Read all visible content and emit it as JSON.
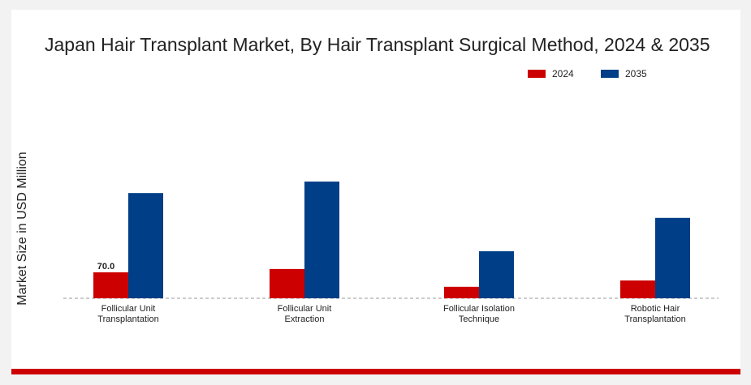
{
  "chart_data": {
    "type": "bar",
    "title": "Japan Hair Transplant Market, By Hair Transplant Surgical Method, 2024 & 2035",
    "y_label": "Market Size in USD Million",
    "categories": [
      "Follicular Unit Transplantation",
      "Follicular Unit Extraction",
      "Follicular Isolation Technique",
      "Robotic Hair Transplantation"
    ],
    "series": [
      {
        "name": "2024",
        "color": "#cc0000",
        "values": [
          70.0,
          79,
          31,
          48
        ],
        "value_labels": [
          "70.0",
          null,
          null,
          null
        ]
      },
      {
        "name": "2035",
        "color": "#003f87",
        "values": [
          284,
          315,
          127,
          217
        ]
      }
    ]
  }
}
